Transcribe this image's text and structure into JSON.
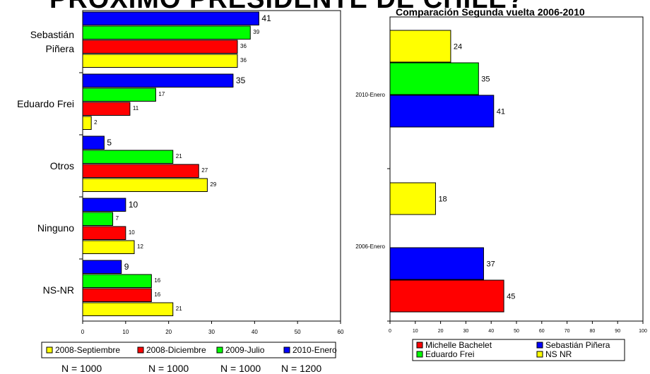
{
  "page": {
    "main_title": "PRÓXIMO PRESIDENTE DE CHILE?",
    "sample_sizes": [
      "N = 1000",
      "N = 1000",
      "N = 1000",
      "N = 1200"
    ]
  },
  "chart_data": [
    {
      "type": "bar",
      "orientation": "horizontal",
      "title": "",
      "categories": [
        "Sebastián\nPiñera",
        "Eduardo Frei",
        "Otros",
        "Ninguno",
        "NS-NR"
      ],
      "series": [
        {
          "name": "2010-Enero",
          "color": "#0000ff",
          "values": [
            41,
            35,
            5,
            10,
            9
          ]
        },
        {
          "name": "2009-Julio",
          "color": "#00ff00",
          "values": [
            39,
            17,
            21,
            7,
            16
          ]
        },
        {
          "name": "2008-Diciembre",
          "color": "#ff0000",
          "values": [
            36,
            11,
            27,
            10,
            16
          ]
        },
        {
          "name": "2008-Septiembre",
          "color": "#ffff00",
          "values": [
            36,
            2,
            29,
            12,
            21
          ]
        }
      ],
      "legend_order": [
        "2008-Septiembre",
        "2008-Diciembre",
        "2009-Julio",
        "2010-Enero"
      ],
      "xlim": [
        0,
        60
      ],
      "xticks": [
        0,
        10,
        20,
        30,
        40,
        50,
        60
      ],
      "legend": "bottom",
      "grid": false
    },
    {
      "type": "bar",
      "orientation": "horizontal",
      "title": "Comparación Segunda vuelta 2006-2010",
      "groups": [
        {
          "label": "2010-Enero",
          "bars": [
            {
              "series": "NS NR",
              "value": 24
            },
            {
              "series": "Eduardo Frei",
              "value": 35
            },
            {
              "series": "Sebastián Piñera",
              "value": 41
            }
          ]
        },
        {
          "label": "2006-Enero",
          "bars": [
            {
              "series": "NS NR",
              "value": 18
            },
            {
              "series": "Sebastián Piñera",
              "value": 37
            },
            {
              "series": "Michelle Bachelet",
              "value": 45
            }
          ]
        }
      ],
      "series": [
        {
          "name": "Michelle Bachelet",
          "color": "#ff0000"
        },
        {
          "name": "Sebastián Piñera",
          "color": "#0000ff"
        },
        {
          "name": "Eduardo Frei",
          "color": "#00ff00"
        },
        {
          "name": "NS NR",
          "color": "#ffff00"
        }
      ],
      "xlim": [
        0,
        100
      ],
      "xticks": [
        0,
        10,
        20,
        30,
        40,
        50,
        60,
        70,
        80,
        90,
        100
      ],
      "legend": "bottom",
      "grid": false
    }
  ]
}
